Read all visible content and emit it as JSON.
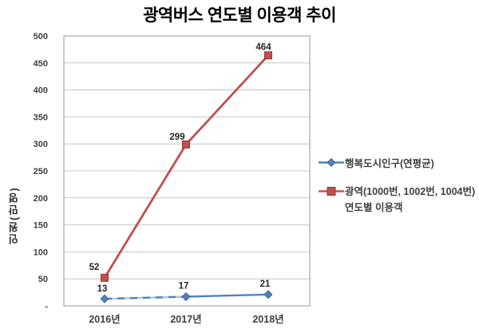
{
  "title": "광역버스 연도별 이용객 추이",
  "chart_data": {
    "type": "line",
    "title": "광역버스 연도별 이용객 추이",
    "categories": [
      "2016년",
      "2017년",
      "2018년"
    ],
    "series": [
      {
        "name": "행복도시인구(연평균)",
        "values": [
          13,
          17,
          21
        ],
        "labels": [
          "13",
          "17",
          "21"
        ],
        "color": "#4f81bd",
        "marker": "diamond",
        "dashed_segment": [
          0,
          1
        ]
      },
      {
        "name": "광역(1000번, 1002번, 1004번) 연도별 이용객",
        "values": [
          52,
          299,
          464
        ],
        "labels": [
          "52",
          "299",
          "464"
        ],
        "color": "#c0504d",
        "marker": "square",
        "dashed_segment": null
      }
    ],
    "xlabel": "",
    "ylabel": "인원(만명)",
    "ylim": [
      0,
      500
    ],
    "ytick_step": 50,
    "ytick_labels": [
      "-",
      "50",
      "100",
      "150",
      "200",
      "250",
      "300",
      "350",
      "400",
      "450",
      "500"
    ],
    "grid": true,
    "legend_position": "right",
    "legend": [
      {
        "lines": [
          "행복도시인구(연평균)"
        ]
      },
      {
        "lines": [
          "광역(1000번, 1002번, 1004번)",
          "연도별 이용객"
        ]
      }
    ]
  },
  "colors": {
    "series_population": "#4f81bd",
    "series_population_light": "#a9c6e4",
    "series_bus": "#c0504d",
    "series_bus_border": "#943634",
    "gridline": "#c6c6c6",
    "plot_border": "#a6a6a6",
    "tick_text": "#3f3f3f",
    "label_text": "#262626",
    "title_text": "#000000"
  }
}
